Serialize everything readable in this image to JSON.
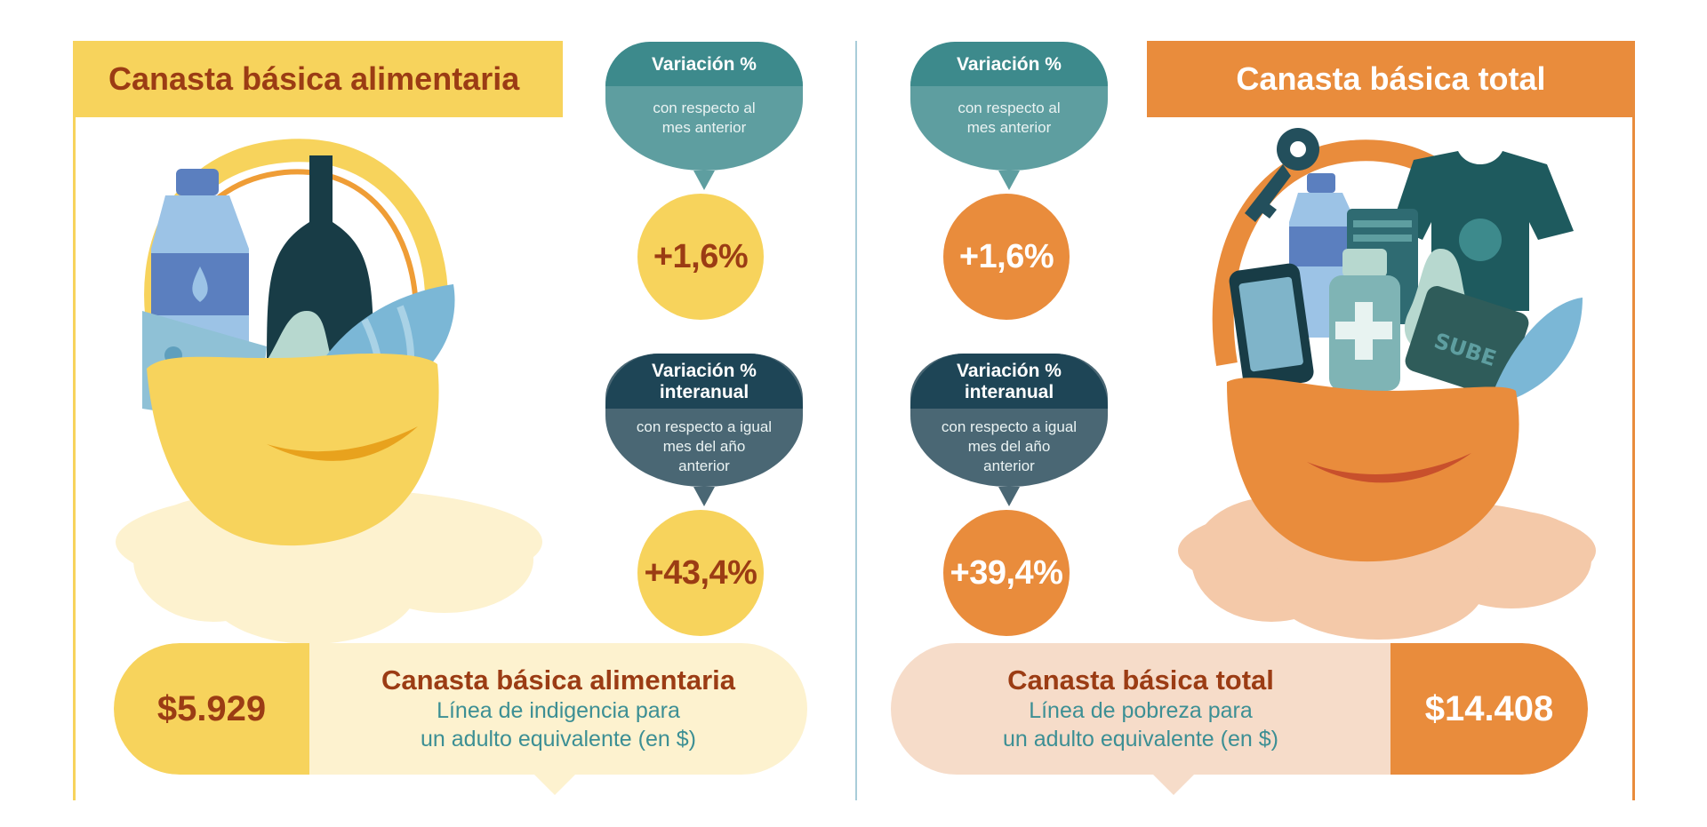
{
  "left": {
    "title": "Canasta básica alimentaria",
    "monthly": {
      "head": "Variación %",
      "sub_line1": "con respecto al",
      "sub_line2": "mes anterior",
      "value": "+1,6%"
    },
    "yearly": {
      "head_line1": "Variación %",
      "head_line2": "interanual",
      "sub_line1": "con respecto a igual",
      "sub_line2": "mes del año",
      "sub_line3": "anterior",
      "value": "+43,4%"
    },
    "summary": {
      "amount": "$5.929",
      "title": "Canasta básica alimentaria",
      "line1": "Línea de indigencia para",
      "line2": "un adulto equivalente (en $)"
    }
  },
  "right": {
    "title": "Canasta básica total",
    "monthly": {
      "head": "Variación %",
      "sub_line1": "con respecto al",
      "sub_line2": "mes anterior",
      "value": "+1,6%"
    },
    "yearly": {
      "head_line1": "Variación %",
      "head_line2": "interanual",
      "sub_line1": "con respecto a igual",
      "sub_line2": "mes del año",
      "sub_line3": "anterior",
      "value": "+39,4%"
    },
    "summary": {
      "amount": "$14.408",
      "title": "Canasta básica total",
      "line1": "Línea de pobreza para",
      "line2": "un adulto equivalente (en $)"
    },
    "card_label": "SUBE"
  },
  "colors": {
    "yellow": "#f7d35c",
    "yellow_light": "#fdf2cf",
    "orange": "#e98c3c",
    "orange_light": "#f6dcc9",
    "teal": "#3d8a8c",
    "teal_light": "#5e9ea0",
    "navy": "#1e4556",
    "slate": "#4a6774",
    "brown_text": "#9b3c14",
    "teal_text": "#3c8f94"
  },
  "icons": [
    "basket-icon",
    "water-bottle-icon",
    "wine-bottle-icon",
    "cheese-icon",
    "pear-icon",
    "fish-icon",
    "key-icon",
    "tshirt-icon",
    "phone-icon",
    "medicine-icon",
    "sube-card-icon",
    "book-icon"
  ]
}
